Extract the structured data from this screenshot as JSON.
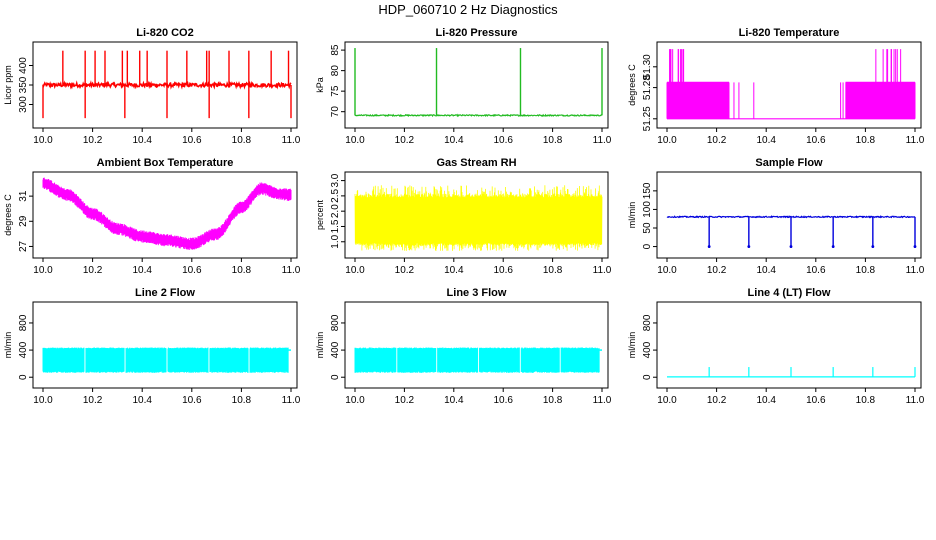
{
  "main_title": "HDP_060710  2 Hz Diagnostics",
  "chart_data": [
    {
      "type": "line",
      "title": "Li-820 CO2",
      "xlabel": "",
      "ylabel": "Licor ppm",
      "xlim": [
        10.0,
        11.0
      ],
      "ylim": [
        250,
        450
      ],
      "x_ticks": [
        "10.0",
        "10.2",
        "10.4",
        "10.6",
        "10.8",
        "11.0"
      ],
      "y_ticks": [
        {
          "value": 300,
          "label": "300"
        },
        {
          "value": 350,
          "label": "350"
        },
        {
          "value": 400,
          "label": "400"
        }
      ],
      "color": "#ff0000",
      "series": [
        {
          "name": "Li-820 CO2",
          "baseline": 350,
          "noise": 5,
          "spikes_up": [
            10.08,
            10.17,
            10.21,
            10.25,
            10.32,
            10.34,
            10.39,
            10.42,
            10.5,
            10.58,
            10.66,
            10.67,
            10.75,
            10.83,
            10.92,
            10.99
          ],
          "spike_up_value": 438,
          "spikes_down": [
            10.0,
            10.17,
            10.33,
            10.5,
            10.67,
            10.83,
            11.0
          ],
          "spike_down_value": 265
        }
      ]
    },
    {
      "type": "line",
      "title": "Li-820 Pressure",
      "xlabel": "",
      "ylabel": "kPa",
      "xlim": [
        10.0,
        11.0
      ],
      "ylim": [
        67,
        86
      ],
      "x_ticks": [
        "10.0",
        "10.2",
        "10.4",
        "10.6",
        "10.8",
        "11.0"
      ],
      "y_ticks": [
        {
          "value": 70,
          "label": "70"
        },
        {
          "value": 75,
          "label": "75"
        },
        {
          "value": 80,
          "label": "80"
        },
        {
          "value": 85,
          "label": "85"
        }
      ],
      "color": "#22bb22",
      "series": [
        {
          "name": "Li-820 Pressure",
          "baseline": 69.1,
          "noise": 0.15,
          "spikes_up": [
            10.0,
            10.33,
            10.67,
            11.0
          ],
          "spike_up_value": 85.5,
          "spikes_down": [],
          "spike_down_value": 69
        }
      ]
    },
    {
      "type": "line",
      "title": "Li-820 Temperature",
      "xlabel": "",
      "ylabel": "degrees C",
      "xlim": [
        10.0,
        11.0
      ],
      "ylim": [
        51.245,
        51.32
      ],
      "x_ticks": [
        "10.0",
        "10.2",
        "10.4",
        "10.6",
        "10.8",
        "11.0"
      ],
      "y_ticks": [
        {
          "value": 51.25,
          "label": "51.25"
        },
        {
          "value": 51.28,
          "label": "51.28"
        },
        {
          "value": 51.3,
          "label": "51.30"
        }
      ],
      "color": "#ff00ff",
      "series": [
        {
          "name": "Li-820 Temperature",
          "low": 51.25,
          "high": 51.285,
          "top": 51.317,
          "dense_ranges": [
            [
              10.0,
              10.25
            ],
            [
              10.72,
              11.0
            ]
          ],
          "top_ranges": [
            [
              10.0,
              10.07
            ],
            [
              10.84,
              10.95
            ]
          ],
          "isolated_lines": [
            10.27,
            10.29,
            10.35,
            10.7,
            10.71
          ]
        }
      ]
    },
    {
      "type": "line",
      "title": "Ambient Box Temperature",
      "xlabel": "",
      "ylabel": "degrees C",
      "xlim": [
        10.0,
        11.0
      ],
      "ylim": [
        26.4,
        32.6
      ],
      "x_ticks": [
        "10.0",
        "10.2",
        "10.4",
        "10.6",
        "10.8",
        "11.0"
      ],
      "y_ticks": [
        {
          "value": 27,
          "label": "27"
        },
        {
          "value": 29,
          "label": "29"
        },
        {
          "value": 31,
          "label": "31"
        }
      ],
      "color": "#ff00ff",
      "series": [
        {
          "name": "Ambient Box Temperature",
          "band": 0.45,
          "x": [
            10.0,
            10.1,
            10.2,
            10.3,
            10.4,
            10.5,
            10.6,
            10.7,
            10.8,
            10.88,
            10.95,
            11.0
          ],
          "y": [
            32.0,
            31.1,
            29.6,
            28.4,
            27.8,
            27.5,
            27.2,
            28.0,
            30.1,
            31.6,
            31.2,
            31.1
          ]
        }
      ]
    },
    {
      "type": "line",
      "title": "Gas Stream RH",
      "xlabel": "",
      "ylabel": "percent",
      "xlim": [
        10.0,
        11.0
      ],
      "ylim": [
        0.6,
        3.15
      ],
      "x_ticks": [
        "10.0",
        "10.2",
        "10.4",
        "10.6",
        "10.8",
        "11.0"
      ],
      "y_ticks": [
        {
          "value": 1.0,
          "label": "1.0"
        },
        {
          "value": 1.5,
          "label": "1.5"
        },
        {
          "value": 2.0,
          "label": "2.0"
        },
        {
          "value": 2.5,
          "label": "2.5"
        },
        {
          "value": 3.0,
          "label": "3.0"
        }
      ],
      "color": "#ffff00",
      "series": [
        {
          "name": "Gas Stream RH",
          "min": 0.7,
          "max": 2.85,
          "band_low": 0.95,
          "band_high": 2.45
        }
      ]
    },
    {
      "type": "line",
      "title": "Sample Flow",
      "xlabel": "",
      "ylabel": "ml/min",
      "xlim": [
        10.0,
        11.0
      ],
      "ylim": [
        -20,
        190
      ],
      "x_ticks": [
        "10.0",
        "10.2",
        "10.4",
        "10.6",
        "10.8",
        "11.0"
      ],
      "y_ticks": [
        {
          "value": 0,
          "label": "0"
        },
        {
          "value": 50,
          "label": "50"
        },
        {
          "value": 100,
          "label": "100"
        },
        {
          "value": 150,
          "label": "150"
        }
      ],
      "color": "#0000dd",
      "series": [
        {
          "name": "Sample Flow",
          "baseline": 80,
          "noise": 1.5,
          "spikes_down": [
            10.17,
            10.33,
            10.5,
            10.67,
            10.83,
            11.0
          ],
          "spike_down_value": 0
        }
      ]
    },
    {
      "type": "area",
      "title": "Line 2 Flow",
      "xlabel": "",
      "ylabel": "ml/min",
      "xlim": [
        10.0,
        11.0
      ],
      "ylim": [
        -100,
        1050
      ],
      "x_ticks": [
        "10.0",
        "10.2",
        "10.4",
        "10.6",
        "10.8",
        "11.0"
      ],
      "y_ticks": [
        {
          "value": 0,
          "label": "0"
        },
        {
          "value": 400,
          "label": "400"
        },
        {
          "value": 800,
          "label": "800"
        }
      ],
      "color": "#00ffff",
      "series": [
        {
          "name": "Line 2 Flow",
          "low": 75,
          "high": 430,
          "gaps": [
            10.17,
            10.33,
            10.5,
            10.67,
            10.83
          ],
          "end_value": 400
        }
      ]
    },
    {
      "type": "area",
      "title": "Line 3 Flow",
      "xlabel": "",
      "ylabel": "ml/min",
      "xlim": [
        10.0,
        11.0
      ],
      "ylim": [
        -100,
        1050
      ],
      "x_ticks": [
        "10.0",
        "10.2",
        "10.4",
        "10.6",
        "10.8",
        "11.0"
      ],
      "y_ticks": [
        {
          "value": 0,
          "label": "0"
        },
        {
          "value": 400,
          "label": "400"
        },
        {
          "value": 800,
          "label": "800"
        }
      ],
      "color": "#00ffff",
      "series": [
        {
          "name": "Line 3 Flow",
          "low": 75,
          "high": 430,
          "gaps": [
            10.17,
            10.33,
            10.5,
            10.67,
            10.83
          ],
          "end_value": 400
        }
      ]
    },
    {
      "type": "line",
      "title": "Line 4 (LT) Flow",
      "xlabel": "",
      "ylabel": "ml/min",
      "xlim": [
        10.0,
        11.0
      ],
      "ylim": [
        -100,
        1050
      ],
      "x_ticks": [
        "10.0",
        "10.2",
        "10.4",
        "10.6",
        "10.8",
        "11.0"
      ],
      "y_ticks": [
        {
          "value": 0,
          "label": "0"
        },
        {
          "value": 400,
          "label": "400"
        },
        {
          "value": 800,
          "label": "800"
        }
      ],
      "color": "#00ffff",
      "series": [
        {
          "name": "Line 4 (LT) Flow",
          "baseline": 5,
          "spikes_up": [
            10.17,
            10.33,
            10.5,
            10.67,
            10.83
          ],
          "spike_up_value": 150,
          "end_value": 150
        }
      ]
    }
  ]
}
